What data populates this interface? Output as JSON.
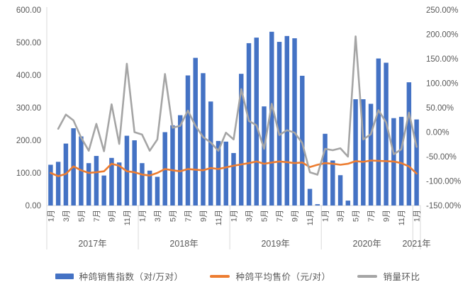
{
  "chart_data": {
    "type": "combo-bar-line",
    "title": "",
    "grid": false,
    "legend_position": "bottom",
    "left_axis": {
      "min": 0,
      "max": 600,
      "ticks": [
        "600.00",
        "500.00",
        "400.00",
        "300.00",
        "200.00",
        "100.00",
        "0.00"
      ]
    },
    "right_axis": {
      "min": -150,
      "max": 250,
      "ticks": [
        "250.00%",
        "200.00%",
        "150.00%",
        "100.00%",
        "50.00%",
        "0.00%",
        "-50.00%",
        "-100.00%",
        "-150.00%"
      ]
    },
    "years": [
      {
        "label": "2017年",
        "months": 12,
        "month_labels": [
          "1月",
          "3月",
          "5月",
          "7月",
          "9月",
          "11月"
        ]
      },
      {
        "label": "2018年",
        "months": 12,
        "month_labels": [
          "1月",
          "3月",
          "5月",
          "7月",
          "9月",
          "11月"
        ]
      },
      {
        "label": "2019年",
        "months": 12,
        "month_labels": [
          "1月",
          "3月",
          "5月",
          "7月",
          "9月",
          "11月"
        ]
      },
      {
        "label": "2020年",
        "months": 12,
        "month_labels": [
          "1月",
          "3月",
          "5月",
          "7月",
          "9月",
          "11月"
        ]
      },
      {
        "label": "2021年",
        "months": 1,
        "month_labels": [
          "1月"
        ]
      }
    ],
    "series": [
      {
        "name": "种鸽销售指数（对/万对）",
        "type": "bar",
        "axis": "left",
        "color": "#4472C4",
        "values": [
          125,
          134,
          190,
          237,
          212,
          130,
          152,
          92,
          146,
          132,
          214,
          200,
          130,
          107,
          88,
          225,
          246,
          277,
          399,
          453,
          406,
          319,
          198,
          196,
          161,
          404,
          498,
          515,
          304,
          533,
          502,
          520,
          513,
          398,
          51,
          4,
          220,
          138,
          93,
          15,
          326,
          326,
          312,
          451,
          438,
          268,
          272,
          378,
          264
        ]
      },
      {
        "name": "种鸽平均售价（元/对）",
        "type": "line",
        "axis": "left",
        "color": "#ED7D31",
        "values": [
          100,
          90,
          97,
          120,
          108,
          100,
          102,
          105,
          128,
          122,
          105,
          102,
          95,
          92,
          100,
          112,
          108,
          105,
          112,
          110,
          108,
          115,
          112,
          117,
          122,
          126,
          130,
          135,
          128,
          132,
          135,
          133,
          130,
          132,
          118,
          125,
          130,
          128,
          125,
          128,
          136,
          134,
          138,
          137,
          136,
          135,
          130,
          120,
          98
        ]
      },
      {
        "name": "销量环比",
        "type": "line",
        "axis": "right",
        "color": "#A5A5A5",
        "values": [
          null,
          7,
          36,
          24,
          -11,
          -38,
          17,
          -39,
          57,
          -24,
          140,
          0,
          -5,
          -38,
          -15,
          119,
          9,
          13,
          44,
          13,
          -10,
          -21,
          -38,
          -1,
          -15,
          88,
          23,
          14,
          -34,
          58,
          -6,
          4,
          -1,
          -22,
          -82,
          -87,
          -34,
          -37,
          -33,
          -50,
          196,
          -15,
          -4,
          45,
          20,
          -45,
          -35,
          40,
          -30
        ]
      }
    ]
  },
  "style": {
    "text_color": "#595959",
    "axis_line_color": "#D9D9D9",
    "background": "#FFFFFF"
  }
}
